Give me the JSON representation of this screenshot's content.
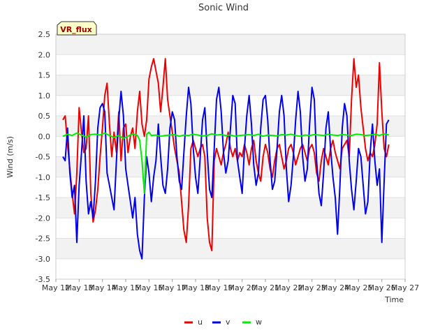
{
  "chart_data": {
    "type": "line",
    "title": "Sonic Wind",
    "xlabel": "Time",
    "ylabel": "Wind (m/s)",
    "site_badge": "VR_flux",
    "xlim": [
      12,
      27
    ],
    "ylim": [
      -3.5,
      2.5
    ],
    "x_ticks": [
      12,
      13,
      14,
      15,
      16,
      17,
      18,
      19,
      20,
      21,
      22,
      23,
      24,
      25,
      26,
      27
    ],
    "x_tick_labels": [
      "May 12",
      "May 13",
      "May 14",
      "May 15",
      "May 16",
      "May 17",
      "May 18",
      "May 19",
      "May 20",
      "May 21",
      "May 22",
      "May 23",
      "May 24",
      "May 25",
      "May 26",
      "May 27"
    ],
    "y_ticks": [
      -3.5,
      -3.0,
      -2.5,
      -2.0,
      -1.5,
      -1.0,
      -0.5,
      0.0,
      0.5,
      1.0,
      1.5,
      2.0,
      2.5
    ],
    "y_tick_labels": [
      "-3.5",
      "-3.0",
      "-2.5",
      "-2.0",
      "-1.5",
      "-1.0",
      "-0.5",
      "0.0",
      "0.5",
      "1.0",
      "1.5",
      "2.0",
      "2.5"
    ],
    "legend_position": "bottom-center",
    "series": [
      {
        "name": "u",
        "color": "#ee0000",
        "x": [
          12.3,
          12.4,
          12.5,
          12.6,
          12.7,
          12.8,
          12.9,
          13.0,
          13.1,
          13.2,
          13.3,
          13.4,
          13.5,
          13.6,
          13.7,
          13.8,
          13.9,
          14.0,
          14.1,
          14.2,
          14.3,
          14.4,
          14.5,
          14.6,
          14.7,
          14.8,
          14.9,
          15.0,
          15.1,
          15.2,
          15.3,
          15.4,
          15.5,
          15.6,
          15.7,
          15.8,
          15.9,
          16.0,
          16.1,
          16.2,
          16.3,
          16.4,
          16.5,
          16.6,
          16.7,
          16.8,
          16.9,
          17.0,
          17.1,
          17.2,
          17.3,
          17.4,
          17.5,
          17.6,
          17.7,
          17.8,
          17.9,
          18.0,
          18.1,
          18.2,
          18.3,
          18.4,
          18.5,
          18.6,
          18.7,
          18.8,
          18.9,
          19.0,
          19.1,
          19.2,
          19.3,
          19.4,
          19.5,
          19.6,
          19.7,
          19.8,
          19.9,
          20.0,
          20.1,
          20.2,
          20.3,
          20.4,
          20.5,
          20.6,
          20.7,
          20.8,
          20.9,
          21.0,
          21.1,
          21.2,
          21.3,
          21.4,
          21.5,
          21.6,
          21.7,
          21.8,
          21.9,
          22.0,
          22.1,
          22.2,
          22.3,
          22.4,
          22.5,
          22.6,
          22.7,
          22.8,
          22.9,
          23.0,
          23.1,
          23.2,
          23.3,
          23.4,
          23.5,
          23.6,
          23.7,
          23.8,
          23.9,
          24.0,
          24.1,
          24.2,
          24.3,
          24.4,
          24.5,
          24.6,
          24.7,
          24.8,
          24.9,
          25.0,
          25.1,
          25.2,
          25.3,
          25.4,
          25.5,
          25.6,
          25.7,
          25.8,
          25.9,
          26.0,
          26.1,
          26.2,
          26.3
        ],
        "values": [
          0.4,
          0.5,
          -0.2,
          -0.8,
          -1.4,
          -1.9,
          -0.9,
          0.7,
          0.1,
          -0.4,
          -0.3,
          0.5,
          -1.4,
          -2.1,
          -1.8,
          -1.3,
          -0.5,
          0.2,
          1.0,
          1.3,
          0.3,
          -0.5,
          0.1,
          -0.4,
          0.6,
          -0.6,
          0.2,
          0.3,
          -0.4,
          0.0,
          0.2,
          -0.3,
          0.6,
          1.1,
          0.3,
          0.0,
          0.4,
          1.4,
          1.7,
          1.9,
          1.6,
          1.3,
          0.6,
          1.2,
          1.9,
          0.9,
          0.5,
          0.1,
          -0.3,
          -0.6,
          -0.9,
          -1.6,
          -2.3,
          -2.6,
          -1.7,
          -0.3,
          -0.1,
          -0.3,
          -0.5,
          -0.3,
          -0.2,
          -0.5,
          -2.0,
          -2.6,
          -2.8,
          -0.6,
          -0.3,
          -0.5,
          -0.7,
          -0.4,
          -0.2,
          0.1,
          -0.3,
          -0.5,
          -0.3,
          -0.6,
          -0.4,
          -0.5,
          -0.2,
          -0.4,
          -0.7,
          -0.3,
          -0.1,
          -0.6,
          -0.9,
          -1.1,
          -0.5,
          -0.2,
          -0.4,
          -0.8,
          -1.0,
          -0.6,
          -0.3,
          -0.2,
          -0.5,
          -0.8,
          -0.6,
          -0.3,
          -0.2,
          -0.4,
          -0.7,
          -0.5,
          -0.3,
          -0.2,
          -0.4,
          -0.6,
          -0.3,
          -0.2,
          -0.4,
          -0.9,
          -1.1,
          -0.6,
          -0.3,
          -0.5,
          -0.7,
          -0.3,
          -0.1,
          -0.4,
          -0.6,
          -0.8,
          -0.3,
          -0.2,
          -0.1,
          -0.5,
          0.9,
          1.9,
          1.2,
          1.5,
          0.7,
          0.2,
          -0.3,
          -0.6,
          -0.4,
          -0.5,
          -0.2,
          0.3,
          1.8,
          0.6,
          -0.3,
          -0.5,
          -0.2
        ]
      },
      {
        "name": "v",
        "color": "#0000ee",
        "x": [
          12.3,
          12.4,
          12.5,
          12.6,
          12.7,
          12.8,
          12.9,
          13.0,
          13.1,
          13.2,
          13.3,
          13.4,
          13.5,
          13.6,
          13.7,
          13.8,
          13.9,
          14.0,
          14.1,
          14.2,
          14.3,
          14.4,
          14.5,
          14.6,
          14.7,
          14.8,
          14.9,
          15.0,
          15.1,
          15.2,
          15.3,
          15.4,
          15.5,
          15.6,
          15.7,
          15.8,
          15.9,
          16.0,
          16.1,
          16.2,
          16.3,
          16.4,
          16.5,
          16.6,
          16.7,
          16.8,
          16.9,
          17.0,
          17.1,
          17.2,
          17.3,
          17.4,
          17.5,
          17.6,
          17.7,
          17.8,
          17.9,
          18.0,
          18.1,
          18.2,
          18.3,
          18.4,
          18.5,
          18.6,
          18.7,
          18.8,
          18.9,
          19.0,
          19.1,
          19.2,
          19.3,
          19.4,
          19.5,
          19.6,
          19.7,
          19.8,
          19.9,
          20.0,
          20.1,
          20.2,
          20.3,
          20.4,
          20.5,
          20.6,
          20.7,
          20.8,
          20.9,
          21.0,
          21.1,
          21.2,
          21.3,
          21.4,
          21.5,
          21.6,
          21.7,
          21.8,
          21.9,
          22.0,
          22.1,
          22.2,
          22.3,
          22.4,
          22.5,
          22.6,
          22.7,
          22.8,
          22.9,
          23.0,
          23.1,
          23.2,
          23.3,
          23.4,
          23.5,
          23.6,
          23.7,
          23.8,
          23.9,
          24.0,
          24.1,
          24.2,
          24.3,
          24.4,
          24.5,
          24.6,
          24.7,
          24.8,
          24.9,
          25.0,
          25.1,
          25.2,
          25.3,
          25.4,
          25.5,
          25.6,
          25.7,
          25.8,
          25.9,
          26.0,
          26.1,
          26.2,
          26.3
        ],
        "values": [
          -0.5,
          -0.6,
          0.2,
          -0.9,
          -1.5,
          -1.2,
          -2.6,
          -1.2,
          -0.4,
          0.5,
          -1.1,
          -1.9,
          -1.6,
          -2.0,
          -1.1,
          0.2,
          0.7,
          0.8,
          0.6,
          -0.9,
          -1.2,
          -1.5,
          -1.8,
          -0.6,
          0.4,
          1.1,
          0.5,
          -0.8,
          -1.2,
          -1.6,
          -2.0,
          -1.5,
          -2.4,
          -2.8,
          -3.0,
          -1.5,
          -0.5,
          -0.9,
          -1.6,
          -1.0,
          -0.6,
          0.3,
          -0.5,
          -1.2,
          -1.4,
          -0.8,
          0.2,
          0.6,
          0.4,
          -0.5,
          -1.1,
          -1.3,
          -0.4,
          0.5,
          1.2,
          0.8,
          -0.3,
          -1.0,
          -1.4,
          -0.5,
          0.4,
          0.7,
          -0.4,
          -1.3,
          -1.5,
          -0.3,
          0.9,
          1.2,
          0.6,
          -0.4,
          -0.9,
          -0.6,
          0.2,
          1.0,
          0.8,
          -0.6,
          -1.0,
          -1.4,
          -0.3,
          0.5,
          1.0,
          0.3,
          -0.7,
          -1.2,
          -0.9,
          0.2,
          0.9,
          1.0,
          0.4,
          -0.6,
          -1.3,
          -1.1,
          -0.3,
          0.6,
          1.0,
          0.5,
          -0.8,
          -1.6,
          -1.2,
          -0.5,
          0.4,
          1.1,
          0.6,
          -0.5,
          -1.1,
          -0.8,
          0.3,
          1.2,
          0.9,
          -0.6,
          -1.4,
          -1.7,
          -0.9,
          0.2,
          0.6,
          -0.3,
          -1.0,
          -1.5,
          -2.4,
          -1.2,
          0.2,
          0.8,
          0.5,
          -0.6,
          -1.3,
          -1.8,
          -1.1,
          -0.3,
          -0.5,
          -1.2,
          -1.9,
          -1.6,
          -0.4,
          0.3,
          -0.6,
          -1.2,
          -0.8,
          -2.6,
          -1.1,
          0.3,
          0.4
        ]
      },
      {
        "name": "w",
        "color": "#00ee00",
        "x": [
          12.3,
          12.5,
          12.7,
          12.9,
          13.1,
          13.3,
          13.5,
          13.7,
          13.9,
          14.1,
          14.3,
          14.5,
          14.7,
          14.9,
          15.1,
          15.3,
          15.5,
          15.6,
          15.7,
          15.8,
          15.9,
          16.0,
          16.1,
          16.3,
          16.5,
          16.7,
          16.9,
          17.1,
          17.3,
          17.5,
          17.7,
          17.9,
          18.1,
          18.3,
          18.5,
          18.7,
          18.9,
          19.1,
          19.3,
          19.5,
          19.7,
          19.9,
          20.1,
          20.3,
          20.5,
          20.7,
          20.9,
          21.1,
          21.3,
          21.5,
          21.7,
          21.9,
          22.1,
          22.3,
          22.5,
          22.7,
          22.9,
          23.1,
          23.3,
          23.5,
          23.7,
          23.9,
          24.1,
          24.3,
          24.5,
          24.7,
          24.9,
          25.1,
          25.3,
          25.5,
          25.7,
          25.9,
          26.1,
          26.3
        ],
        "values": [
          0.0,
          0.05,
          0.02,
          0.08,
          0.03,
          -0.02,
          0.04,
          0.05,
          0.03,
          0.08,
          0.02,
          -0.03,
          0.02,
          -0.05,
          0.0,
          0.06,
          0.02,
          -0.1,
          -0.6,
          -1.4,
          0.05,
          0.1,
          0.02,
          0.03,
          0.0,
          0.02,
          0.03,
          0.04,
          0.0,
          0.03,
          0.02,
          0.05,
          0.03,
          0.01,
          0.02,
          0.06,
          0.03,
          0.04,
          0.02,
          0.03,
          0.0,
          0.02,
          0.03,
          0.04,
          0.02,
          0.05,
          0.0,
          0.03,
          0.02,
          0.01,
          0.04,
          0.03,
          0.05,
          0.02,
          0.0,
          0.03,
          0.02,
          0.04,
          0.03,
          0.02,
          0.05,
          0.03,
          0.02,
          0.04,
          0.03,
          0.02,
          0.05,
          0.04,
          0.02,
          0.03,
          0.05,
          0.02,
          0.06,
          0.03
        ]
      }
    ]
  }
}
